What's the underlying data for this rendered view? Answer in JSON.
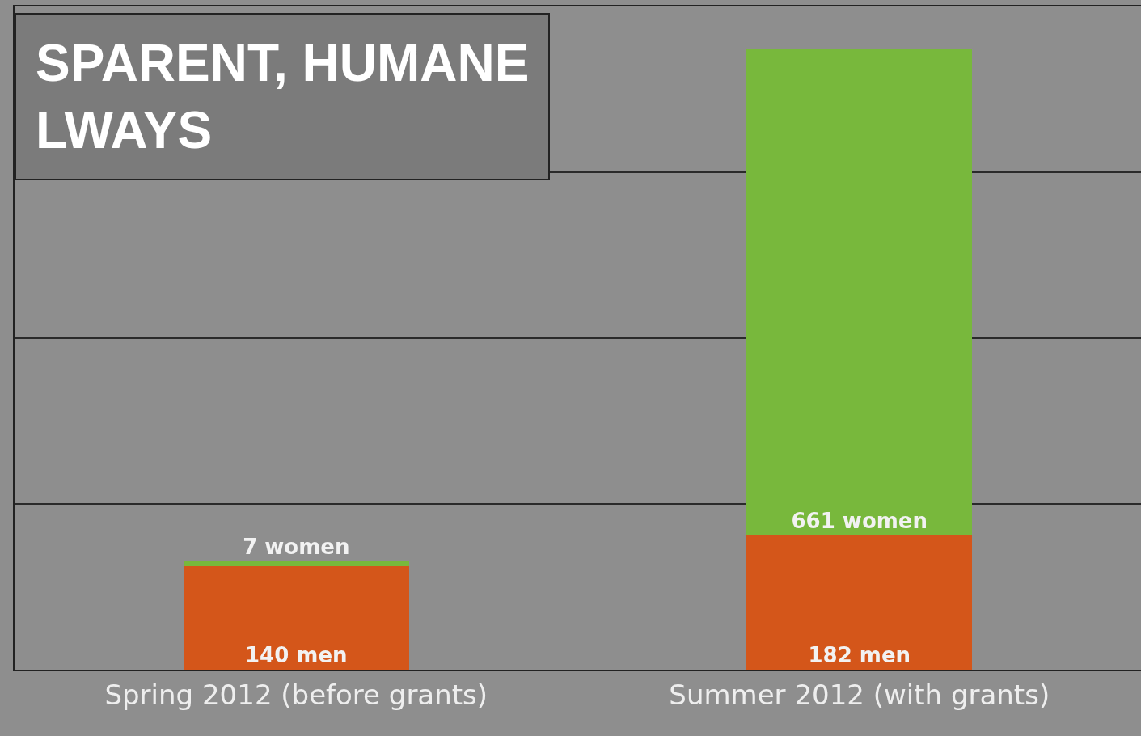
{
  "chart_data": {
    "type": "bar",
    "stacked": true,
    "categories": [
      "Spring 2012 (before grants)",
      "Summer 2012 (with grants)"
    ],
    "series": [
      {
        "color": "#d4561a",
        "values": [
          140,
          182
        ],
        "value_labels": [
          "140 men",
          "182 men"
        ]
      },
      {
        "color": "#78b83c",
        "values": [
          7,
          661
        ],
        "value_labels": [
          "7 women",
          "661 women"
        ]
      }
    ],
    "ylim": [
      0,
      900
    ],
    "yticks": [
      {
        "value": 0,
        "label": null
      },
      {
        "value": 225,
        "label": null
      },
      {
        "value": 450,
        "label": null
      },
      {
        "value": 675,
        "label": null
      }
    ],
    "grid": "y",
    "legend": false,
    "tick_labels": "x",
    "annotations": [
      "SPARENT, HUMANE",
      "LWAYS"
    ]
  }
}
